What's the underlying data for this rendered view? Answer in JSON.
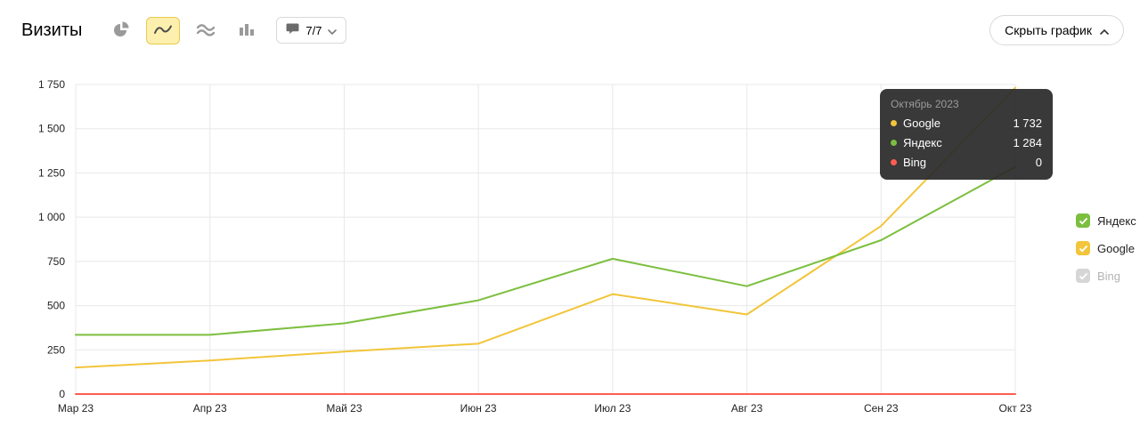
{
  "header": {
    "title": "Визиты",
    "comments_label": "7/7",
    "hide_chart_label": "Скрыть график"
  },
  "toolbar": {
    "chart_type_icons": [
      {
        "name": "pie-chart",
        "selected": false
      },
      {
        "name": "line-chart",
        "selected": true
      },
      {
        "name": "stacked-area-chart",
        "selected": false
      },
      {
        "name": "column-chart",
        "selected": false
      }
    ]
  },
  "tooltip": {
    "title": "Октябрь 2023",
    "rows": [
      {
        "label": "Google",
        "value": "1 732",
        "color": "#f2c53a"
      },
      {
        "label": "Яндекс",
        "value": "1 284",
        "color": "#7cbf3f"
      },
      {
        "label": "Bing",
        "value": "0",
        "color": "#ff5c52"
      }
    ]
  },
  "legend": {
    "items": [
      {
        "label": "Яндекс",
        "color": "#7cbf3f",
        "checked": true,
        "enabled": true
      },
      {
        "label": "Google",
        "color": "#f2c53a",
        "checked": true,
        "enabled": true
      },
      {
        "label": "Bing",
        "color": "#d6d6d6",
        "checked": true,
        "enabled": false
      }
    ]
  },
  "chart_data": {
    "type": "line",
    "title": "Визиты",
    "categories": [
      "Мар 23",
      "Апр 23",
      "Май 23",
      "Июн 23",
      "Июл 23",
      "Авг 23",
      "Сен 23",
      "Окт 23"
    ],
    "series": [
      {
        "name": "Яндекс",
        "color": "#7cbf3f",
        "values": [
          335,
          335,
          400,
          530,
          765,
          610,
          870,
          1284
        ]
      },
      {
        "name": "Google",
        "color": "#f2c53a",
        "values": [
          150,
          190,
          240,
          285,
          565,
          450,
          950,
          1732
        ]
      },
      {
        "name": "Bing",
        "color": "#ff5c52",
        "values": [
          0,
          0,
          0,
          0,
          0,
          0,
          0,
          0
        ]
      }
    ],
    "xlabel": "",
    "ylabel": "",
    "ylim": [
      0,
      1750
    ],
    "yticks": [
      0,
      250,
      500,
      750,
      1000,
      1250,
      1500,
      1750
    ],
    "grid": true,
    "legend_position": "right"
  }
}
